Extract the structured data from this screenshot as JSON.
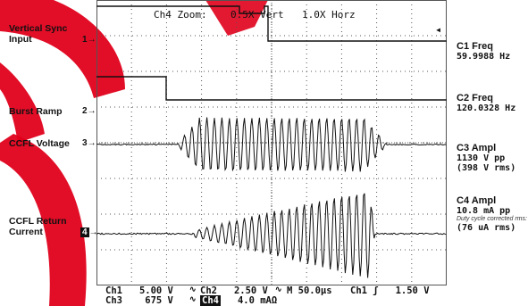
{
  "header": {
    "zoom_label": "Ch4 Zoom:",
    "vert": "0.5X Vert",
    "horz": "1.0X Horz",
    "arrow": "◂"
  },
  "left_labels": {
    "vsync": "Vertical Sync Input",
    "burst": "Burst Ramp",
    "ccfl_v": "CCFL Voltage",
    "ccfl_i": "CCFL Return Current"
  },
  "channel_markers": {
    "m1": "1",
    "m2": "2",
    "m3": "3",
    "m4": "4"
  },
  "measurements": {
    "c1_title": "C1 Freq",
    "c1_val": "59.9988 Hz",
    "c2_title": "C2 Freq",
    "c2_val": "120.0328 Hz",
    "c3_title": "C3 Ampl",
    "c3_val1": "1130 V pp",
    "c3_val2": "(398 V rms)",
    "c4_title": "C4 Ampl",
    "c4_val1": "10.8 mA pp",
    "c4_note": "Duty cycle corrected rms:",
    "c4_val2": "(76 uA rms)"
  },
  "status_bar": {
    "ch1": "Ch1",
    "ch1_scale": "5.00 V",
    "ch2": "Ch2",
    "ch2_scale": "2.50 V",
    "timebase": "M 50.0µs",
    "trig_ch": "Ch1",
    "trig_level": "1.50 V",
    "ch3": "Ch3",
    "ch3_scale": "675 V",
    "ch4": "Ch4",
    "ch4_scale": "4.0 mAΩ"
  },
  "colors": {
    "grid": "#555555",
    "trace": "#111111",
    "watermark": "#e0001b"
  }
}
